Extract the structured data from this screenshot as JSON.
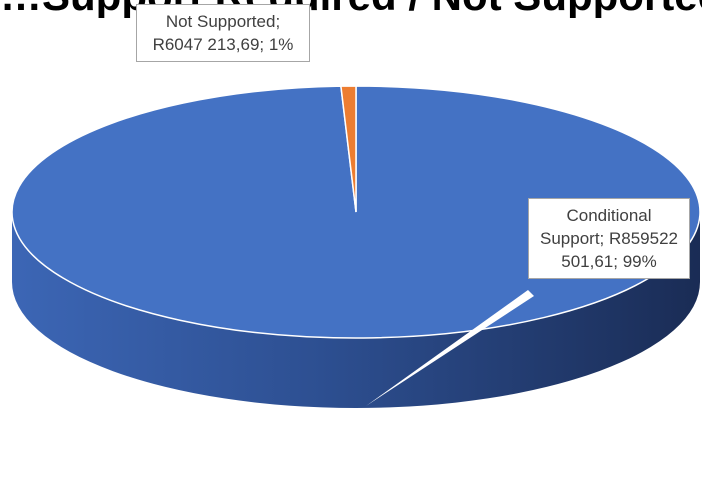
{
  "chart_data": {
    "type": "pie",
    "title": "…Support Required / Not Supported…",
    "slices": [
      {
        "name": "Conditional Support",
        "value": 859522501.61,
        "percent": 99,
        "label_lines": [
          "Conditional",
          "Support; R859522",
          "501,61; 99%"
        ]
      },
      {
        "name": "Not Supported",
        "value": 6047213.69,
        "percent": 1,
        "label_lines": [
          "Not Supported;",
          "R6047 213,69; 1%"
        ]
      }
    ],
    "colors": {
      "Conditional Support": "#4472c4",
      "Not Supported": "#ed7d31"
    },
    "legend": "none",
    "grid": false,
    "style": "3d-pie"
  }
}
